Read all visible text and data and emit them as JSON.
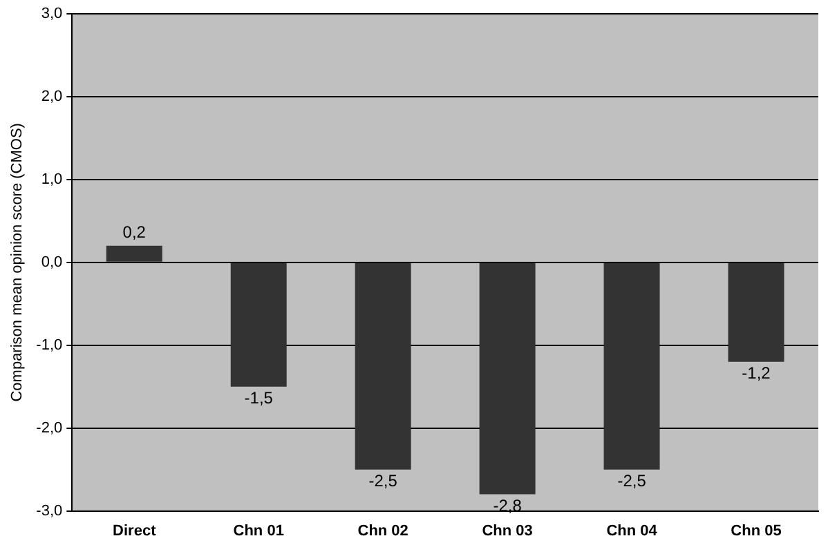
{
  "chart_data": {
    "type": "bar",
    "ylabel": "Comparison mean opinion score (CMOS)",
    "categories": [
      "Direct",
      "Chn 01",
      "Chn 02",
      "Chn 03",
      "Chn 04",
      "Chn 05"
    ],
    "values": [
      0.2,
      -1.5,
      -2.5,
      -2.8,
      -2.5,
      -1.2
    ],
    "value_labels": [
      "0,2",
      "-1,5",
      "-2,5",
      "-2,8",
      "-2,5",
      "-1,2"
    ],
    "color": "#333333",
    "ylim": [
      -3,
      3
    ],
    "yticks": [
      {
        "value": -3,
        "label": "-3,0"
      },
      {
        "value": -2,
        "label": "-2,0"
      },
      {
        "value": -1,
        "label": "-1,0"
      },
      {
        "value": 0,
        "label": "0,0"
      },
      {
        "value": 1,
        "label": "1,0"
      },
      {
        "value": 2,
        "label": "2,0"
      },
      {
        "value": 3,
        "label": "3,0"
      }
    ],
    "grid": "y",
    "legend": false
  }
}
